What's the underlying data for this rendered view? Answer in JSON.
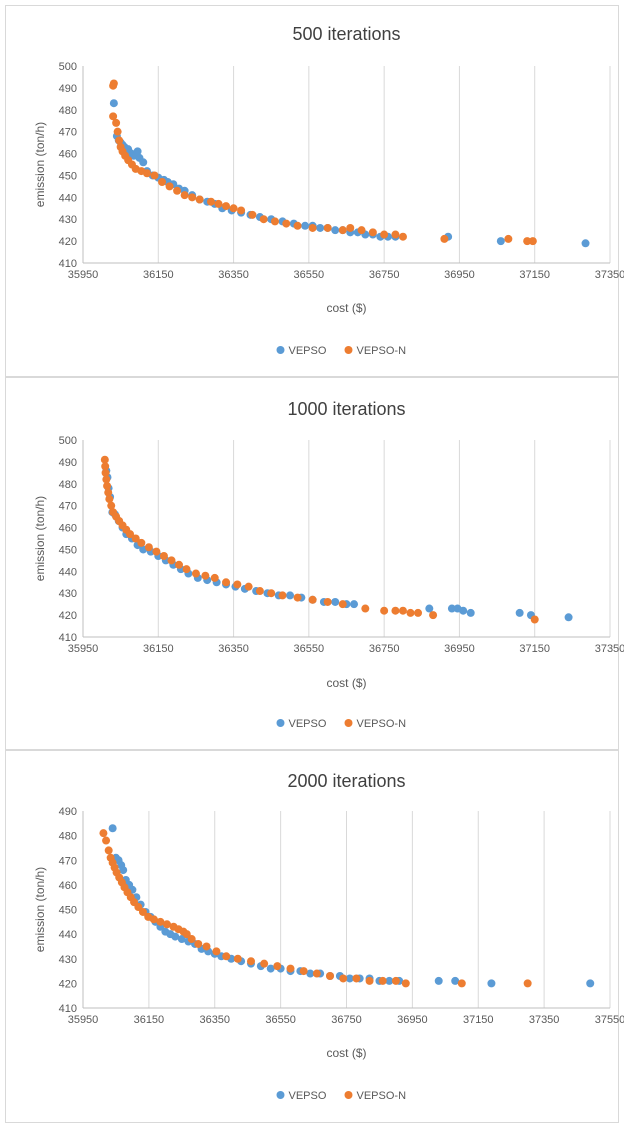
{
  "chart_data": [
    {
      "type": "scatter",
      "title": "500 iterations",
      "xlabel": "cost ($)",
      "ylabel": "emission (ton/h)",
      "xlim": [
        35950,
        37350
      ],
      "ylim": [
        410,
        500
      ],
      "xticks": [
        35950,
        36150,
        36350,
        36550,
        36750,
        36950,
        37150,
        37350
      ],
      "yticks": [
        410,
        420,
        430,
        440,
        450,
        460,
        470,
        480,
        490,
        500
      ],
      "grid": "vertical",
      "legend": "bottom",
      "series": [
        {
          "name": "VEPSO",
          "color": "#5b9bd5",
          "x": [
            36032,
            36040,
            36045,
            36050,
            36055,
            36060,
            36070,
            36078,
            36085,
            36095,
            36100,
            36110,
            36120,
            36135,
            36150,
            36165,
            36175,
            36190,
            36205,
            36220,
            36240,
            36260,
            36280,
            36300,
            36320,
            36345,
            36370,
            36395,
            36420,
            36450,
            36480,
            36510,
            36540,
            36560,
            36580,
            36600,
            36620,
            36640,
            36660,
            36680,
            36700,
            36720,
            36740,
            36760,
            36780,
            36920,
            37060,
            37285
          ],
          "y": [
            483,
            468,
            466,
            465,
            464,
            463,
            462,
            460,
            459,
            461,
            458,
            456,
            452,
            450,
            449,
            448,
            447,
            446,
            444,
            443,
            441,
            439,
            438,
            437,
            435,
            434,
            433,
            432,
            431,
            430,
            429,
            428,
            427,
            427,
            426,
            426,
            425,
            425,
            424,
            424,
            423,
            423,
            422,
            422,
            422,
            422,
            420,
            419
          ]
        },
        {
          "name": "VEPSO-N",
          "color": "#ed7d31",
          "x": [
            36030,
            36032,
            36030,
            36038,
            36042,
            36046,
            36050,
            36055,
            36062,
            36070,
            36080,
            36090,
            36105,
            36120,
            36140,
            36160,
            36180,
            36200,
            36220,
            36240,
            36260,
            36290,
            36310,
            36330,
            36350,
            36370,
            36400,
            36430,
            36460,
            36490,
            36520,
            36560,
            36600,
            36640,
            36660,
            36690,
            36720,
            36750,
            36780,
            36800,
            36910,
            37080,
            37130,
            37145
          ],
          "y": [
            491,
            492,
            477,
            474,
            470,
            466,
            463,
            461,
            459,
            457,
            455,
            453,
            452,
            451,
            450,
            447,
            445,
            443,
            441,
            440,
            439,
            438,
            437,
            436,
            435,
            434,
            432,
            430,
            429,
            428,
            427,
            426,
            426,
            425,
            426,
            425,
            424,
            423,
            423,
            422,
            421,
            421,
            420,
            420
          ]
        }
      ]
    },
    {
      "type": "scatter",
      "title": "1000 iterations",
      "xlabel": "cost ($)",
      "ylabel": "emission (ton/h)",
      "xlim": [
        35950,
        37350
      ],
      "ylim": [
        410,
        500
      ],
      "xticks": [
        35950,
        36150,
        36350,
        36550,
        36750,
        36950,
        37150,
        37350
      ],
      "yticks": [
        410,
        420,
        430,
        440,
        450,
        460,
        470,
        480,
        490,
        500
      ],
      "grid": "vertical",
      "legend": "bottom",
      "series": [
        {
          "name": "VEPSO",
          "color": "#5b9bd5",
          "x": [
            36012,
            36015,
            36018,
            36022,
            36028,
            36035,
            36045,
            36055,
            36065,
            36080,
            36095,
            36110,
            36130,
            36150,
            36170,
            36190,
            36210,
            36230,
            36255,
            36280,
            36305,
            36330,
            36355,
            36380,
            36410,
            36440,
            36470,
            36500,
            36530,
            36560,
            36590,
            36620,
            36650,
            36670,
            36870,
            36930,
            36945,
            36960,
            36980,
            37110,
            37140,
            37240
          ],
          "y": [
            486,
            483,
            478,
            474,
            467,
            466,
            463,
            460,
            457,
            455,
            452,
            450,
            449,
            447,
            445,
            443,
            441,
            439,
            437,
            436,
            435,
            434,
            433,
            432,
            431,
            430,
            429,
            429,
            428,
            427,
            426,
            426,
            425,
            425,
            423,
            423,
            423,
            422,
            421,
            421,
            420,
            419
          ]
        },
        {
          "name": "VEPSO-N",
          "color": "#ed7d31",
          "x": [
            36008,
            36009,
            36010,
            36012,
            36014,
            36017,
            36020,
            36025,
            36030,
            36038,
            36046,
            36055,
            36065,
            36075,
            36090,
            36105,
            36125,
            36145,
            36165,
            36185,
            36205,
            36225,
            36250,
            36275,
            36300,
            36330,
            36360,
            36390,
            36420,
            36450,
            36480,
            36520,
            36560,
            36600,
            36640,
            36700,
            36750,
            36780,
            36800,
            36820,
            36840,
            36880,
            37150
          ],
          "y": [
            491,
            488,
            485,
            482,
            479,
            476,
            473,
            470,
            467,
            465,
            463,
            461,
            459,
            457,
            455,
            453,
            451,
            449,
            447,
            445,
            443,
            441,
            439,
            438,
            437,
            435,
            434,
            433,
            431,
            430,
            429,
            428,
            427,
            426,
            425,
            423,
            422,
            422,
            422,
            421,
            421,
            420,
            418
          ]
        }
      ]
    },
    {
      "type": "scatter",
      "title": "2000 iterations",
      "xlabel": "cost ($)",
      "ylabel": "emission (ton/h)",
      "xlim": [
        35950,
        37550
      ],
      "ylim": [
        410,
        490
      ],
      "xticks": [
        35950,
        36150,
        36350,
        36550,
        36750,
        36950,
        37150,
        37350,
        37550
      ],
      "yticks": [
        410,
        420,
        430,
        440,
        450,
        460,
        470,
        480,
        490
      ],
      "grid": "vertical",
      "legend": "bottom",
      "series": [
        {
          "name": "VEPSO",
          "color": "#5b9bd5",
          "x": [
            36040,
            36050,
            36058,
            36066,
            36072,
            36080,
            36090,
            36100,
            36112,
            36125,
            36140,
            36155,
            36170,
            36185,
            36200,
            36215,
            36230,
            36250,
            36270,
            36290,
            36310,
            36330,
            36350,
            36370,
            36400,
            36430,
            36460,
            36490,
            36520,
            36550,
            36580,
            36610,
            36640,
            36670,
            36700,
            36730,
            36760,
            36790,
            36820,
            36850,
            36880,
            36910,
            37030,
            37080,
            37190,
            37490
          ],
          "y": [
            483,
            471,
            470,
            468,
            466,
            462,
            460,
            458,
            455,
            452,
            449,
            447,
            445,
            443,
            441,
            440,
            439,
            438,
            437,
            436,
            434,
            433,
            432,
            431,
            430,
            429,
            428,
            427,
            426,
            426,
            425,
            425,
            424,
            424,
            423,
            423,
            422,
            422,
            422,
            421,
            421,
            421,
            421,
            421,
            420,
            420
          ]
        },
        {
          "name": "VEPSO-N",
          "color": "#ed7d31",
          "x": [
            36012,
            36020,
            36028,
            36034,
            36040,
            36046,
            36052,
            36060,
            36068,
            36076,
            36085,
            36095,
            36105,
            36118,
            36132,
            36148,
            36165,
            36185,
            36205,
            36225,
            36240,
            36255,
            36265,
            36280,
            36300,
            36325,
            36355,
            36385,
            36420,
            36460,
            36500,
            36540,
            36580,
            36620,
            36660,
            36700,
            36740,
            36780,
            36820,
            36860,
            36900,
            36930,
            37100,
            37300
          ],
          "y": [
            481,
            478,
            474,
            471,
            469,
            467,
            465,
            463,
            461,
            459,
            457,
            455,
            453,
            451,
            449,
            447,
            446,
            445,
            444,
            443,
            442,
            441,
            440,
            438,
            436,
            435,
            433,
            431,
            430,
            429,
            428,
            427,
            426,
            425,
            424,
            423,
            422,
            422,
            421,
            421,
            421,
            420,
            420,
            420
          ]
        }
      ]
    }
  ]
}
